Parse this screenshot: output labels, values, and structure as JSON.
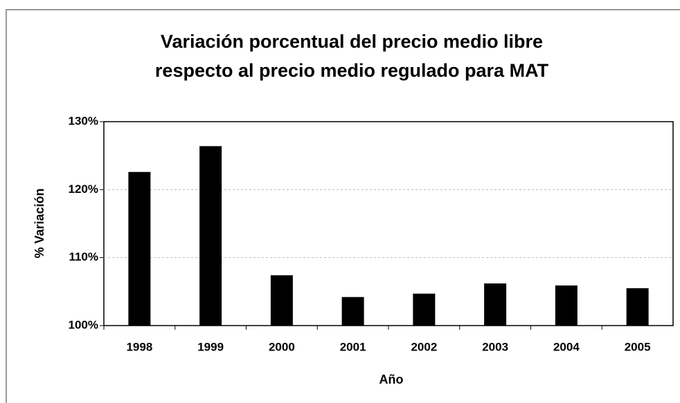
{
  "chart_data": {
    "type": "bar",
    "title": [
      "Variación porcentual del precio medio libre",
      "respecto al precio medio regulado para MAT"
    ],
    "x_label": "Año",
    "y_label": "% Variación",
    "categories": [
      "1998",
      "1999",
      "2000",
      "2001",
      "2002",
      "2003",
      "2004",
      "2005"
    ],
    "values": [
      122.6,
      126.4,
      107.4,
      104.2,
      104.7,
      106.2,
      105.9,
      105.5
    ],
    "color": "#000000",
    "ylim": [
      100,
      130
    ],
    "yticks": [
      {
        "value": 100,
        "label": "100%"
      },
      {
        "value": 110,
        "label": "110%"
      },
      {
        "value": 120,
        "label": "120%"
      },
      {
        "value": 130,
        "label": "130%"
      }
    ],
    "grid": true
  }
}
